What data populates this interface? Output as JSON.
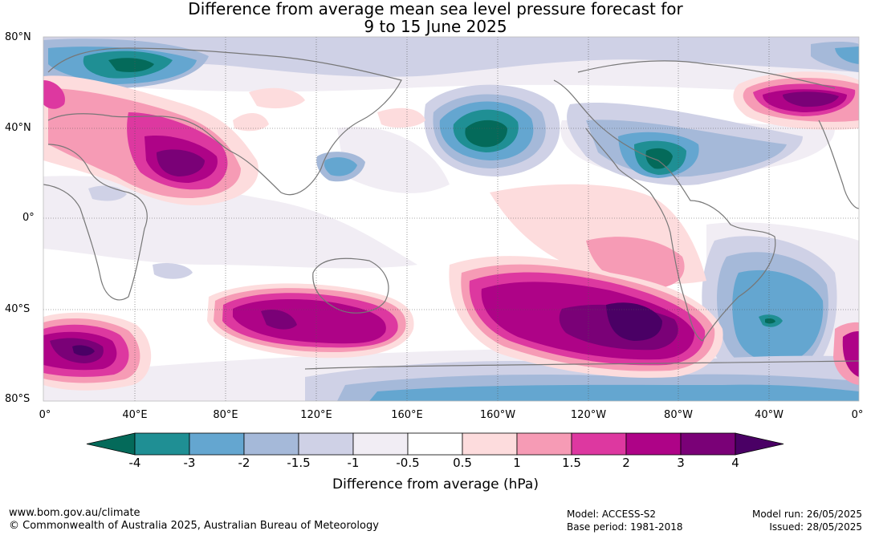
{
  "title": {
    "line1": "Difference from average mean sea level pressure forecast for",
    "line2": "9 to 15 June 2025"
  },
  "map": {
    "lat_labels": [
      "80°N",
      "40°N",
      "0°",
      "40°S",
      "80°S"
    ],
    "lon_labels": [
      "0°",
      "40°E",
      "80°E",
      "120°E",
      "160°E",
      "160°W",
      "120°W",
      "80°W",
      "40°W",
      "0°"
    ]
  },
  "colorbar": {
    "ticks": [
      "-4",
      "-3",
      "-2",
      "-1.5",
      "-1",
      "-0.5",
      "0.5",
      "1",
      "1.5",
      "2",
      "3",
      "4"
    ],
    "colors": [
      "#046a5a",
      "#1f8f94",
      "#64a6d0",
      "#a5b9d9",
      "#cfd1e6",
      "#f1edf4",
      "#ffffff",
      "#fddcdd",
      "#f69bb5",
      "#dd38a0",
      "#ae0387",
      "#7a0177",
      "#4a0065"
    ],
    "label": "Difference from average (hPa)"
  },
  "footer": {
    "url": "www.bom.gov.au/climate",
    "copyright": "© Commonwealth of Australia 2025, Australian Bureau of Meteorology",
    "model": "Model: ACCESS-S2",
    "base_period": "Base period: 1981-2018",
    "model_run": "Model run: 26/05/2025",
    "issued": "Issued: 28/05/2025"
  }
}
